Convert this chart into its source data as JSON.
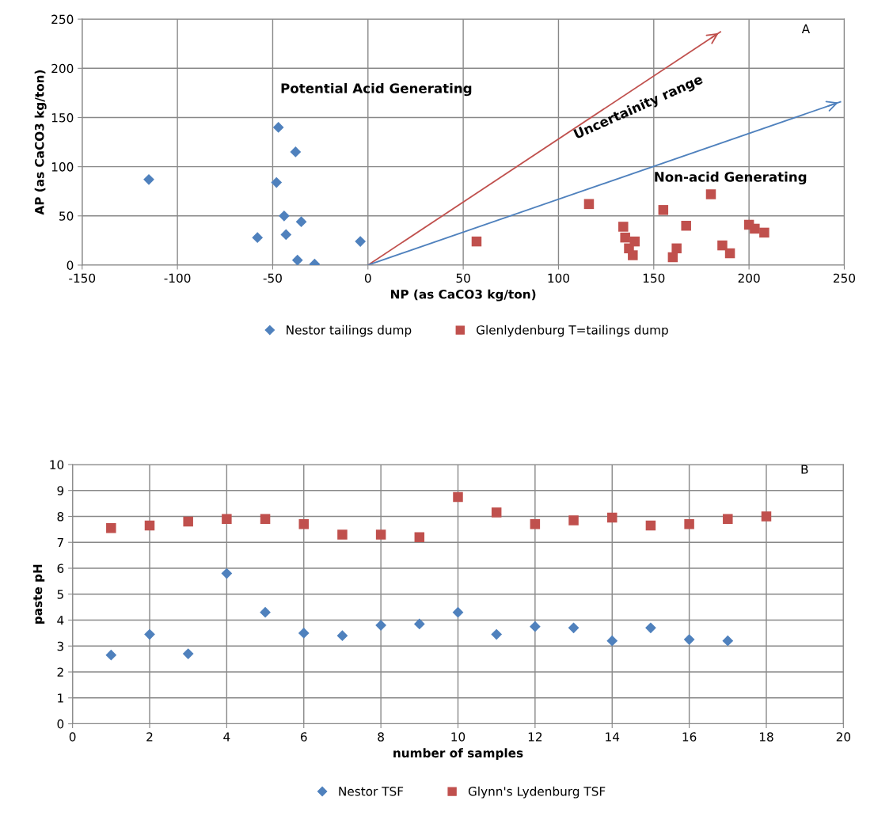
{
  "chart_data": [
    {
      "type": "scatter",
      "xlabel": "NP (as CaCO3 kg/ton)",
      "ylabel": "AP (as CaCO3 kg/ton)",
      "xlim": [
        -150,
        250
      ],
      "xticks": [
        -150,
        -100,
        -50,
        0,
        50,
        100,
        150,
        200,
        250
      ],
      "ylim": [
        0,
        250
      ],
      "yticks": [
        0,
        50,
        100,
        150,
        200,
        250
      ],
      "grid": true,
      "legend": "bottom",
      "annotations": [
        "Potential Acid Generating",
        "Uncertainity range",
        "Non-acid Generating",
        "A"
      ],
      "series": [
        {
          "name": "Nestor tailings dump",
          "color": "#4f81bd",
          "marker": "diamond",
          "x": [
            -115,
            -47,
            -38,
            -48,
            -44,
            -35,
            -43,
            -58,
            -37,
            -28,
            -4
          ],
          "values": [
            87,
            140,
            115,
            84,
            50,
            44,
            31,
            28,
            5,
            1,
            24
          ]
        },
        {
          "name": "Glenlydenburg T=tailings dump",
          "color": "#c0504d",
          "marker": "square",
          "x": [
            57,
            116,
            134,
            135,
            137,
            140,
            139,
            155,
            162,
            160,
            167,
            180,
            186,
            190,
            200,
            203,
            208
          ],
          "values": [
            24,
            62,
            39,
            28,
            17,
            24,
            10,
            56,
            17,
            8,
            40,
            72,
            20,
            12,
            41,
            37,
            33
          ]
        },
        {
          "type": "line",
          "color": "#c0504d",
          "marker": "none",
          "x": [
            0,
            185
          ],
          "values": [
            0,
            237
          ]
        },
        {
          "type": "line",
          "color": "#4f81bd",
          "marker": "none",
          "x": [
            0,
            248
          ],
          "values": [
            0,
            166
          ]
        }
      ]
    },
    {
      "type": "scatter",
      "xlabel": "number of samples",
      "ylabel": "paste pH",
      "xlim": [
        0,
        20
      ],
      "xticks": [
        0,
        2,
        4,
        6,
        8,
        10,
        12,
        14,
        16,
        18,
        20
      ],
      "ylim": [
        0,
        10
      ],
      "yticks": [
        0,
        1,
        2,
        3,
        4,
        5,
        6,
        7,
        8,
        9,
        10
      ],
      "grid": true,
      "legend": "bottom",
      "annotations": [
        "B"
      ],
      "series": [
        {
          "name": "Nestor TSF",
          "color": "#4f81bd",
          "marker": "diamond",
          "x": [
            1,
            2,
            3,
            4,
            5,
            6,
            7,
            8,
            9,
            10,
            11,
            12,
            13,
            14,
            15,
            16,
            17
          ],
          "values": [
            2.65,
            3.45,
            2.7,
            5.8,
            4.3,
            3.5,
            3.4,
            3.8,
            3.85,
            4.3,
            3.45,
            3.75,
            3.7,
            3.2,
            3.7,
            3.25,
            3.2
          ]
        },
        {
          "name": "Glynn's Lydenburg TSF",
          "color": "#c0504d",
          "marker": "square",
          "x": [
            1,
            2,
            3,
            4,
            5,
            6,
            7,
            8,
            9,
            10,
            11,
            12,
            13,
            14,
            15,
            16,
            17,
            18
          ],
          "values": [
            7.55,
            7.65,
            7.8,
            7.9,
            7.9,
            7.7,
            7.3,
            7.3,
            7.2,
            8.75,
            8.15,
            7.7,
            7.85,
            7.95,
            7.65,
            7.7,
            7.9,
            8.0
          ]
        }
      ]
    }
  ]
}
